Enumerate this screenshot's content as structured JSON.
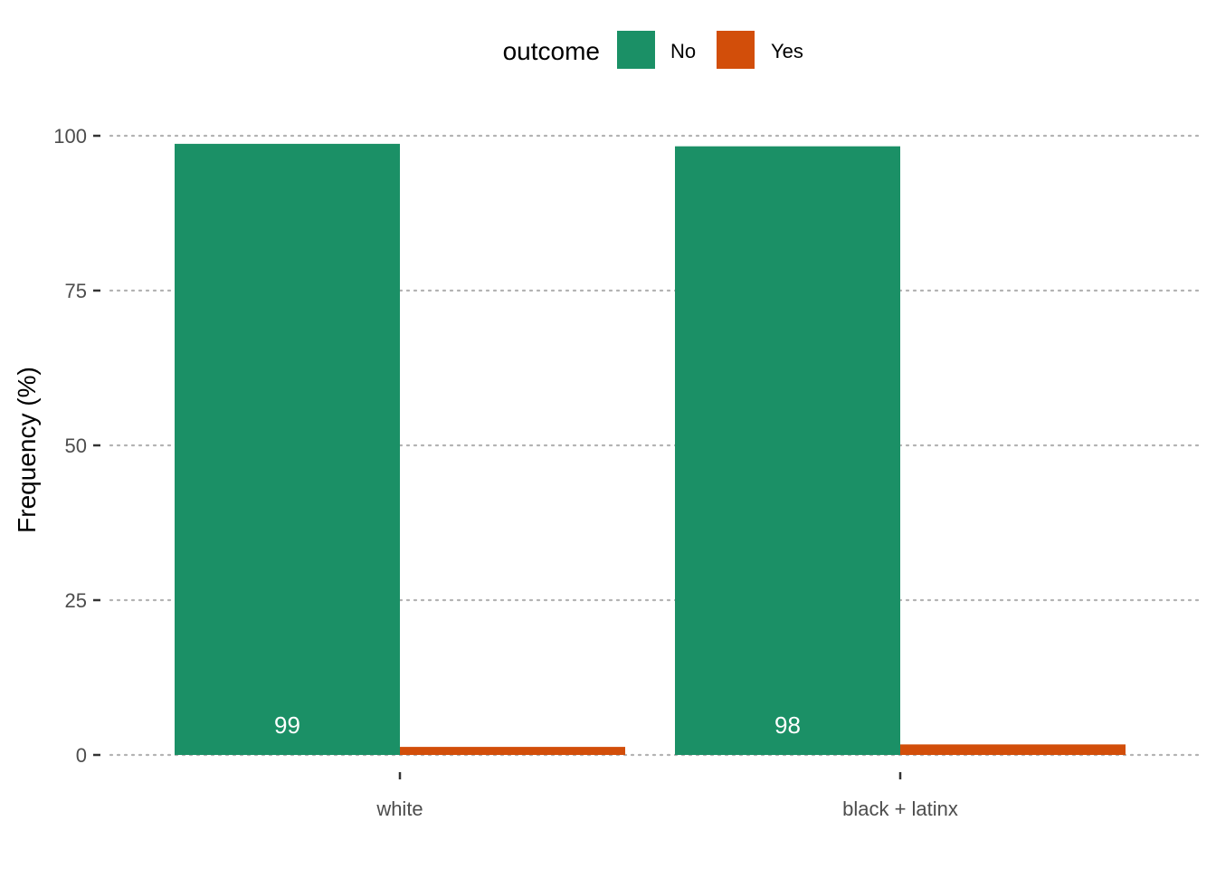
{
  "chart_data": {
    "type": "bar",
    "categories": [
      "white",
      "black + latinx"
    ],
    "series": [
      {
        "name": "No",
        "values": [
          98.7,
          98.3
        ],
        "labels": [
          "99",
          "98"
        ],
        "color": "#1b9066"
      },
      {
        "name": "Yes",
        "values": [
          1.3,
          1.7
        ],
        "labels": [
          "",
          ""
        ],
        "color": "#d24e0a"
      }
    ],
    "ylabel": "Frequency (%)",
    "xlabel": "",
    "ylim": [
      0,
      100
    ],
    "yticks": [
      "0",
      "25",
      "50",
      "75",
      "100"
    ],
    "legend": {
      "title": "outcome",
      "position": "top"
    },
    "grid": "horizontal dotted"
  }
}
